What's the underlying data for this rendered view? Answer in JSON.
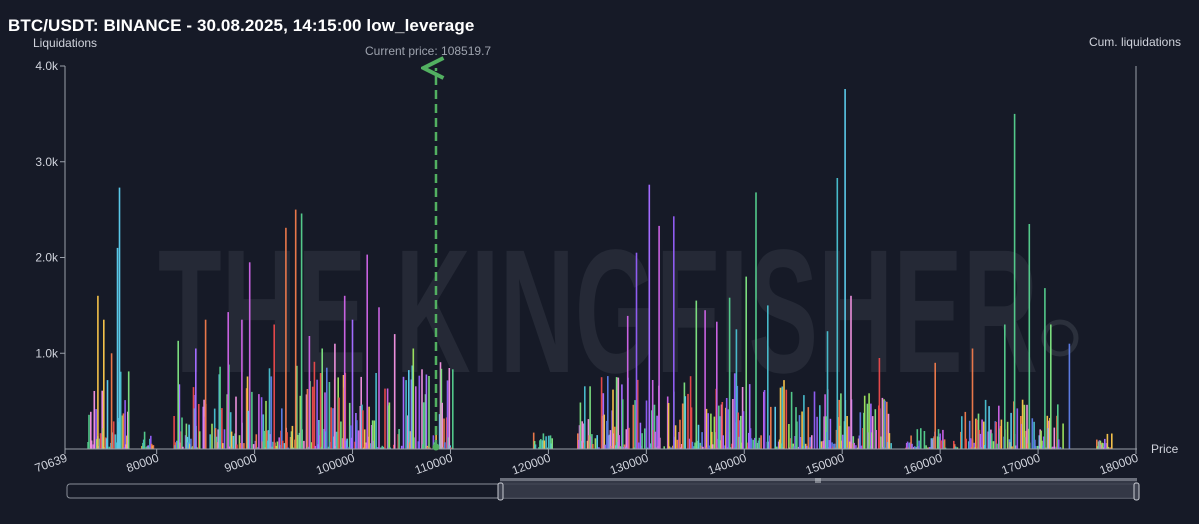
{
  "header": {
    "title": "BTC/USDT: BINANCE - 30.08.2025, 14:15:00 low_leverage",
    "y_axis_label": "Liquidations",
    "y2_axis_label": "Cum. liquidations",
    "x_axis_label": "Price",
    "current_price_label": "Current price: 108519.7"
  },
  "watermark": "THE KINGFISHER",
  "chart_data": {
    "type": "bar",
    "title": "BTC/USDT: BINANCE - 30.08.2025, 14:15:00 low_leverage",
    "xlabel": "Price",
    "ylabel": "Liquidations",
    "y2label": "Cum. liquidations",
    "xlim": [
      70639,
      180000
    ],
    "ylim": [
      0,
      4000
    ],
    "x_ticks": [
      70639,
      80000,
      90000,
      100000,
      110000,
      120000,
      130000,
      140000,
      150000,
      160000,
      170000,
      180000
    ],
    "x_tick_labels": [
      "70639",
      "80000",
      "90000",
      "100000",
      "110000",
      "120000",
      "130000",
      "140000",
      "150000",
      "160000",
      "170000",
      "180000"
    ],
    "y_ticks": [
      1000,
      2000,
      3000,
      4000
    ],
    "y_tick_labels": [
      "1.0k",
      "2.0k",
      "3.0k",
      "4.0k"
    ],
    "current_price": 108519.7,
    "grid": false,
    "palette": [
      "#f3c04a",
      "#e8774a",
      "#c862e0",
      "#a26bff",
      "#8f5cf0",
      "#5ac8e8",
      "#47b9c9",
      "#7bdc7e",
      "#53c88a",
      "#e3484a",
      "#ec8fdb",
      "#9adf5d",
      "#5b7be0"
    ],
    "peaks": [
      {
        "x": 74000,
        "v": 1600,
        "c": "#f3c04a"
      },
      {
        "x": 74600,
        "v": 1350,
        "c": "#f3c04a"
      },
      {
        "x": 75400,
        "v": 1000,
        "c": "#e8774a"
      },
      {
        "x": 76200,
        "v": 2730,
        "c": "#5ac8e8"
      },
      {
        "x": 76000,
        "v": 2100,
        "c": "#5ac8e8"
      },
      {
        "x": 82200,
        "v": 1130,
        "c": "#7bdc7e"
      },
      {
        "x": 84000,
        "v": 1050,
        "c": "#a26bff"
      },
      {
        "x": 85000,
        "v": 1350,
        "c": "#e8774a"
      },
      {
        "x": 87300,
        "v": 1430,
        "c": "#c862e0"
      },
      {
        "x": 88700,
        "v": 1350,
        "c": "#c862e0"
      },
      {
        "x": 89500,
        "v": 1950,
        "c": "#c862e0"
      },
      {
        "x": 92000,
        "v": 1300,
        "c": "#e3484a"
      },
      {
        "x": 93200,
        "v": 2310,
        "c": "#e8774a"
      },
      {
        "x": 94200,
        "v": 2500,
        "c": "#e8774a"
      },
      {
        "x": 94800,
        "v": 2460,
        "c": "#53c88a"
      },
      {
        "x": 95600,
        "v": 1180,
        "c": "#c862e0"
      },
      {
        "x": 96900,
        "v": 1050,
        "c": "#7bdc7e"
      },
      {
        "x": 98200,
        "v": 1100,
        "c": "#ec8fdb"
      },
      {
        "x": 99200,
        "v": 1600,
        "c": "#c862e0"
      },
      {
        "x": 100000,
        "v": 1350,
        "c": "#a26bff"
      },
      {
        "x": 101500,
        "v": 2030,
        "c": "#c862e0"
      },
      {
        "x": 102700,
        "v": 1480,
        "c": "#c862e0"
      },
      {
        "x": 104300,
        "v": 1200,
        "c": "#ec8fdb"
      },
      {
        "x": 106200,
        "v": 1050,
        "c": "#9adf5d"
      },
      {
        "x": 128100,
        "v": 1390,
        "c": "#c862e0"
      },
      {
        "x": 129000,
        "v": 2050,
        "c": "#8f5cf0"
      },
      {
        "x": 130300,
        "v": 2760,
        "c": "#a26bff"
      },
      {
        "x": 131300,
        "v": 2330,
        "c": "#c862e0"
      },
      {
        "x": 132800,
        "v": 2430,
        "c": "#8f5cf0"
      },
      {
        "x": 135100,
        "v": 1550,
        "c": "#7bdc7e"
      },
      {
        "x": 136000,
        "v": 1450,
        "c": "#c862e0"
      },
      {
        "x": 137200,
        "v": 1330,
        "c": "#c862e0"
      },
      {
        "x": 138500,
        "v": 1580,
        "c": "#53c88a"
      },
      {
        "x": 139200,
        "v": 1250,
        "c": "#47b9c9"
      },
      {
        "x": 140200,
        "v": 1800,
        "c": "#7bdc7e"
      },
      {
        "x": 141200,
        "v": 2680,
        "c": "#53c88a"
      },
      {
        "x": 142400,
        "v": 1500,
        "c": "#47b9c9"
      },
      {
        "x": 148500,
        "v": 1230,
        "c": "#47b9c9"
      },
      {
        "x": 149500,
        "v": 2830,
        "c": "#47b9c9"
      },
      {
        "x": 150300,
        "v": 3760,
        "c": "#5ac8e8"
      },
      {
        "x": 150900,
        "v": 1600,
        "c": "#ec8fdb"
      },
      {
        "x": 153800,
        "v": 950,
        "c": "#e3484a"
      },
      {
        "x": 159500,
        "v": 900,
        "c": "#e8774a"
      },
      {
        "x": 163300,
        "v": 1050,
        "c": "#e8774a"
      },
      {
        "x": 166600,
        "v": 1300,
        "c": "#53c88a"
      },
      {
        "x": 167600,
        "v": 3500,
        "c": "#53c88a"
      },
      {
        "x": 169100,
        "v": 2350,
        "c": "#53c88a"
      },
      {
        "x": 170700,
        "v": 1680,
        "c": "#53c88a"
      },
      {
        "x": 171300,
        "v": 1300,
        "c": "#7bdc7e"
      },
      {
        "x": 173200,
        "v": 1100,
        "c": "#5b7be0"
      }
    ],
    "clusters": [
      {
        "from": 73000,
        "to": 77200,
        "max": 800
      },
      {
        "from": 78500,
        "to": 79800,
        "max": 200
      },
      {
        "from": 81600,
        "to": 86500,
        "max": 700
      },
      {
        "from": 86300,
        "to": 110400,
        "max": 900
      },
      {
        "from": 118500,
        "to": 120400,
        "max": 180
      },
      {
        "from": 123000,
        "to": 144400,
        "max": 800
      },
      {
        "from": 144200,
        "to": 155000,
        "max": 650
      },
      {
        "from": 156500,
        "to": 160600,
        "max": 250
      },
      {
        "from": 161400,
        "to": 172600,
        "max": 500
      },
      {
        "from": 176000,
        "to": 177600,
        "max": 150
      }
    ],
    "navigator": {
      "selected_from": 70639,
      "selected_to": 180000
    }
  }
}
